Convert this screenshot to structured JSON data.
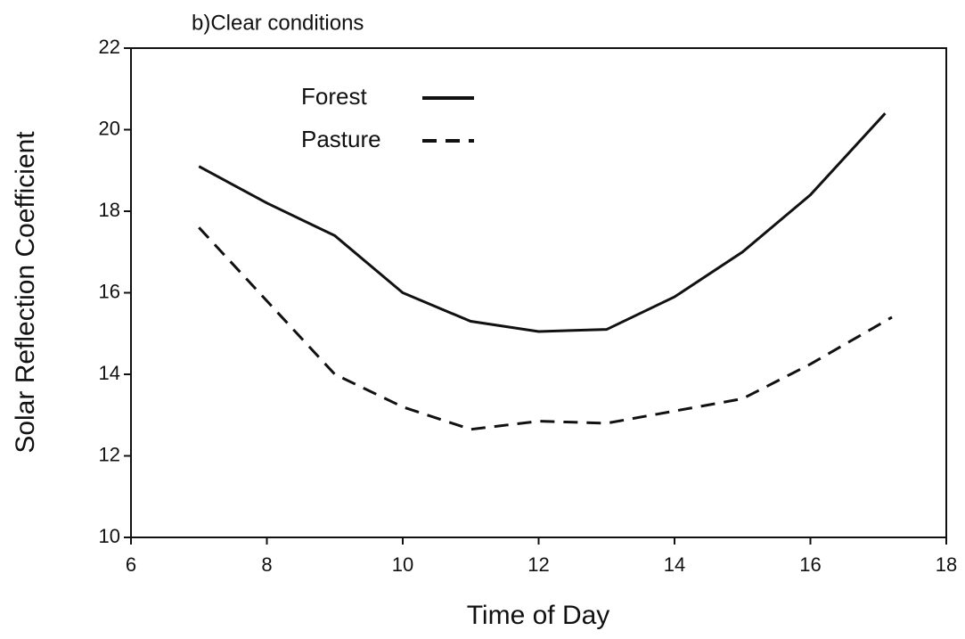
{
  "chart_data": {
    "type": "line",
    "title": "b)Clear conditions",
    "x_label": "Time of Day",
    "y_label": "Solar Reflection Coefficient",
    "xlim": [
      6,
      18
    ],
    "xticks": [
      6,
      8,
      10,
      12,
      14,
      16,
      18
    ],
    "ylim": [
      10,
      22
    ],
    "yticks": [
      10,
      12,
      14,
      16,
      18,
      20,
      22
    ],
    "legend": "upper left",
    "series": [
      {
        "name": "Forest",
        "color": "#111111",
        "dash": "solid",
        "x": [
          7,
          8,
          9,
          10,
          11,
          12,
          13,
          14,
          15,
          16,
          17.1
        ],
        "values": [
          19.1,
          18.2,
          17.4,
          16.0,
          15.3,
          15.05,
          15.1,
          15.9,
          17.0,
          18.4,
          20.4
        ]
      },
      {
        "name": "Pasture",
        "color": "#111111",
        "dash": "dashed",
        "x": [
          7,
          8,
          9,
          10,
          11,
          12,
          13,
          14,
          15,
          16,
          17.2
        ],
        "values": [
          17.6,
          15.8,
          14.0,
          13.2,
          12.65,
          12.85,
          12.8,
          13.1,
          13.4,
          14.25,
          15.4
        ]
      }
    ]
  }
}
